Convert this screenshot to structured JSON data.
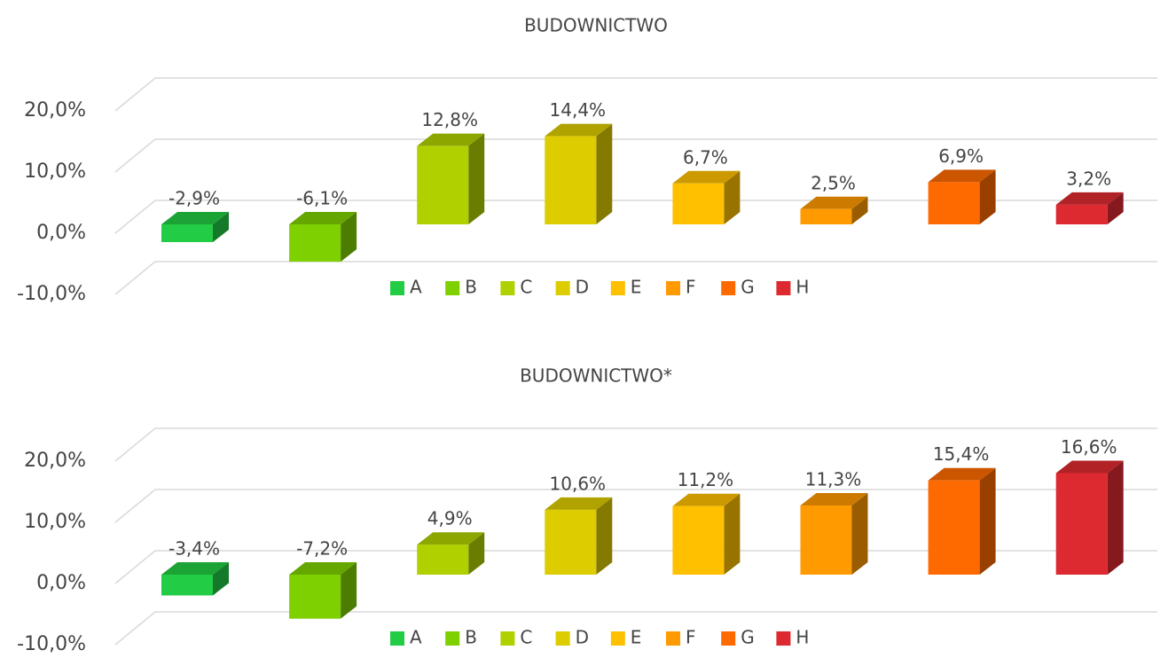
{
  "chart_data": [
    {
      "type": "bar3d",
      "title": "BUDOWNICTWO",
      "series": [
        {
          "name": "A",
          "color": "#22cc44",
          "values": [
            -2.9
          ],
          "value_labels": [
            "-2,9%"
          ]
        },
        {
          "name": "B",
          "color": "#7ed000",
          "values": [
            -6.1
          ],
          "value_labels": [
            "-6,1%"
          ]
        },
        {
          "name": "C",
          "color": "#b0d000",
          "values": [
            12.8
          ],
          "value_labels": [
            "12,8%"
          ]
        },
        {
          "name": "D",
          "color": "#dccc00",
          "values": [
            14.4
          ],
          "value_labels": [
            "14,4%"
          ]
        },
        {
          "name": "E",
          "color": "#ffc000",
          "values": [
            6.7
          ],
          "value_labels": [
            "6,7%"
          ]
        },
        {
          "name": "F",
          "color": "#ff9a00",
          "values": [
            2.5
          ],
          "value_labels": [
            "2,5%"
          ]
        },
        {
          "name": "G",
          "color": "#ff6a00",
          "values": [
            6.9
          ],
          "value_labels": [
            "6,9%"
          ]
        },
        {
          "name": "H",
          "color": "#dd2a30",
          "values": [
            3.2
          ],
          "value_labels": [
            "3,2%"
          ]
        }
      ],
      "ylim": [
        -10,
        20
      ],
      "yticks": [
        {
          "value": -10,
          "label": "-10,0%"
        },
        {
          "value": 0,
          "label": "0,0%"
        },
        {
          "value": 10,
          "label": "10,0%"
        },
        {
          "value": 20,
          "label": "20,0%"
        }
      ],
      "grid": true,
      "legend": "bottom"
    },
    {
      "type": "bar3d",
      "title": "BUDOWNICTWO*",
      "series": [
        {
          "name": "A",
          "color": "#22cc44",
          "values": [
            -3.4
          ],
          "value_labels": [
            "-3,4%"
          ]
        },
        {
          "name": "B",
          "color": "#7ed000",
          "values": [
            -7.2
          ],
          "value_labels": [
            "-7,2%"
          ]
        },
        {
          "name": "C",
          "color": "#b0d000",
          "values": [
            4.9
          ],
          "value_labels": [
            "4,9%"
          ]
        },
        {
          "name": "D",
          "color": "#dccc00",
          "values": [
            10.6
          ],
          "value_labels": [
            "10,6%"
          ]
        },
        {
          "name": "E",
          "color": "#ffc000",
          "values": [
            11.2
          ],
          "value_labels": [
            "11,2%"
          ]
        },
        {
          "name": "F",
          "color": "#ff9a00",
          "values": [
            11.3
          ],
          "value_labels": [
            "11,3%"
          ]
        },
        {
          "name": "G",
          "color": "#ff6a00",
          "values": [
            15.4
          ],
          "value_labels": [
            "15,4%"
          ]
        },
        {
          "name": "H",
          "color": "#dd2a30",
          "values": [
            16.6
          ],
          "value_labels": [
            "16,6%"
          ]
        }
      ],
      "ylim": [
        -10,
        20
      ],
      "yticks": [
        {
          "value": -10,
          "label": "-10,0%"
        },
        {
          "value": 0,
          "label": "0,0%"
        },
        {
          "value": 10,
          "label": "10,0%"
        },
        {
          "value": 20,
          "label": "20,0%"
        }
      ],
      "grid": true,
      "legend": "bottom"
    }
  ]
}
